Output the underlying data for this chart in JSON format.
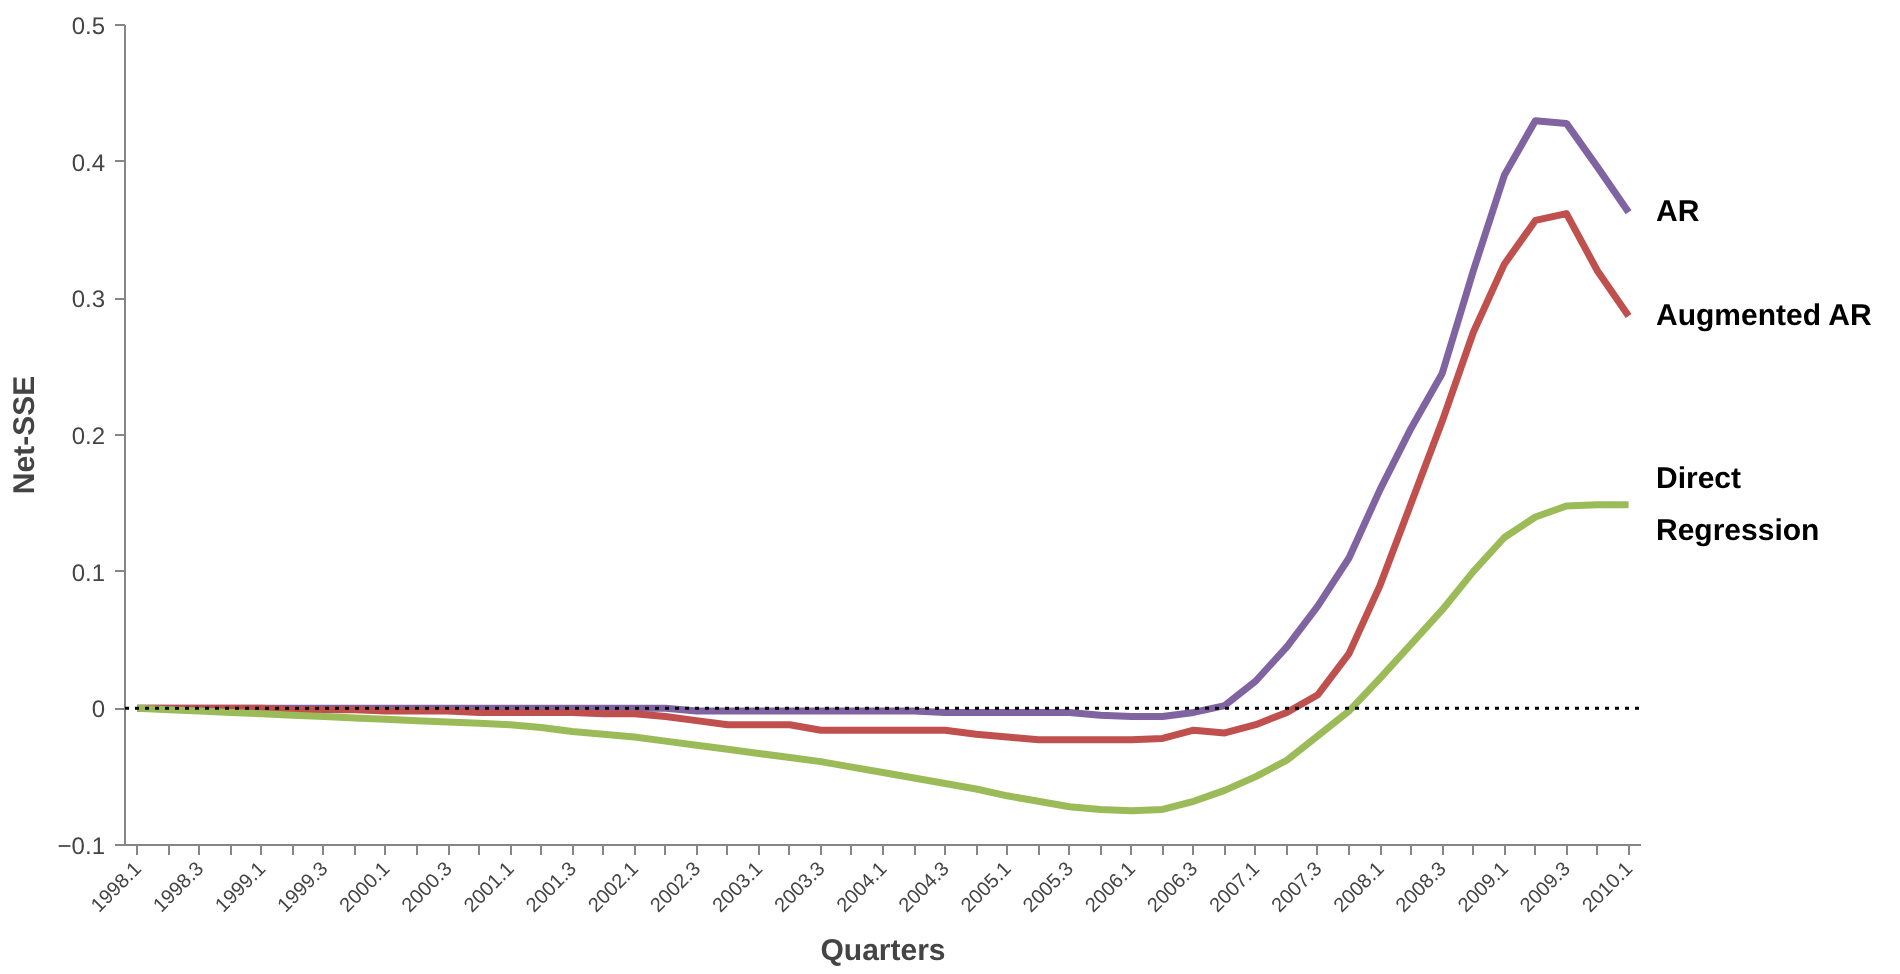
{
  "chart_data": {
    "type": "line",
    "xlabel": "Quarters",
    "ylabel": "Net-SSE",
    "categories": [
      "1998.1",
      null,
      "1998.3",
      null,
      "1999.1",
      null,
      "1999.3",
      null,
      "2000.1",
      null,
      "2000.3",
      null,
      "2001.1",
      null,
      "2001.3",
      null,
      "2002.1",
      null,
      "2002.3",
      null,
      "2003.1",
      null,
      "2003.3",
      null,
      "2004.1",
      null,
      "2004.3",
      null,
      "2005.1",
      null,
      "2005.3",
      null,
      "2006.1",
      null,
      "2006.3",
      null,
      "2007.1",
      null,
      "2007.3",
      null,
      "2008.1",
      null,
      "2008.3",
      null,
      "2009.1",
      null,
      "2009.3",
      null,
      "2010.1"
    ],
    "series": [
      {
        "name": "AR",
        "color": "#8064a2",
        "values": [
          0,
          0,
          0,
          0,
          0,
          0,
          0,
          0,
          0,
          0,
          0,
          0,
          0,
          0,
          0,
          0,
          0,
          0,
          -0.002,
          -0.002,
          -0.002,
          -0.002,
          -0.002,
          -0.002,
          -0.002,
          -0.002,
          -0.003,
          -0.003,
          -0.003,
          -0.003,
          -0.003,
          -0.005,
          -0.006,
          -0.006,
          -0.003,
          0.002,
          0.02,
          0.045,
          0.075,
          0.11,
          0.16,
          0.205,
          0.245,
          0.32,
          0.39,
          0.43,
          0.428,
          0.396,
          0.363
        ]
      },
      {
        "name": "Augmented AR",
        "color": "#c0504d",
        "values": [
          0,
          0,
          0,
          0,
          0,
          -0.001,
          -0.001,
          -0.001,
          -0.002,
          -0.002,
          -0.002,
          -0.003,
          -0.003,
          -0.003,
          -0.003,
          -0.004,
          -0.004,
          -0.006,
          -0.009,
          -0.012,
          -0.012,
          -0.012,
          -0.016,
          -0.016,
          -0.016,
          -0.016,
          -0.016,
          -0.019,
          -0.021,
          -0.023,
          -0.023,
          -0.023,
          -0.023,
          -0.022,
          -0.016,
          -0.018,
          -0.012,
          -0.003,
          0.01,
          0.04,
          0.09,
          0.15,
          0.21,
          0.275,
          0.325,
          0.357,
          0.362,
          0.32,
          0.287
        ]
      },
      {
        "name": "Direct Regression",
        "color": "#9bbb59",
        "values": [
          0,
          -0.001,
          -0.002,
          -0.003,
          -0.004,
          -0.005,
          -0.006,
          -0.007,
          -0.008,
          -0.009,
          -0.01,
          -0.011,
          -0.012,
          -0.014,
          -0.017,
          -0.019,
          -0.021,
          -0.024,
          -0.027,
          -0.03,
          -0.033,
          -0.036,
          -0.039,
          -0.043,
          -0.047,
          -0.051,
          -0.055,
          -0.059,
          -0.064,
          -0.068,
          -0.072,
          -0.074,
          -0.075,
          -0.074,
          -0.068,
          -0.06,
          -0.05,
          -0.038,
          -0.02,
          -0.002,
          0.022,
          0.047,
          0.072,
          0.1,
          0.125,
          0.14,
          0.148,
          0.149,
          0.149
        ]
      }
    ],
    "ylim": [
      -0.1,
      0.5
    ],
    "yticks": [
      -0.1,
      0,
      0.1,
      0.2,
      0.3,
      0.4,
      0.5
    ],
    "grid": false,
    "ref_lines": [
      {
        "axis": "y",
        "value": 0,
        "color": "#000000",
        "line_style": "dotted"
      }
    ]
  }
}
